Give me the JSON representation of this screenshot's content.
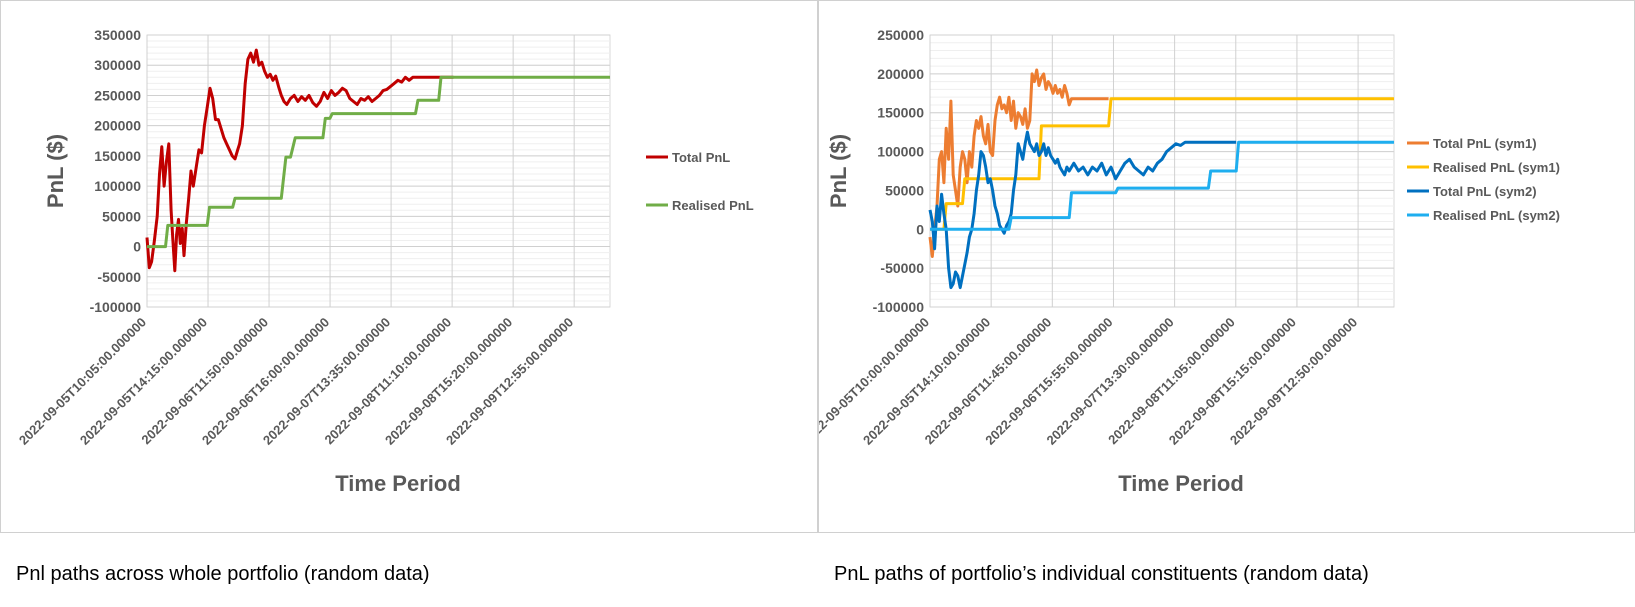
{
  "captions": {
    "left": "Pnl paths across whole portfolio (random data)",
    "right": "PnL paths of portfolio’s individual constituents (random data)"
  },
  "chart_data": [
    {
      "type": "line",
      "xlabel": "Time Period",
      "ylabel": "PnL ($)",
      "ylim": [
        -100000,
        350000
      ],
      "yticks": [
        -100000,
        -50000,
        0,
        50000,
        100000,
        150000,
        200000,
        250000,
        300000,
        350000
      ],
      "xlim": [
        0,
        1
      ],
      "xtick_labels": [
        "2022-09-05T10:05:00.000000",
        "2022-09-05T14:15:00.000000",
        "2022-09-06T11:50:00.000000",
        "2022-09-06T16:00:00.000000",
        "2022-09-07T13:35:00.000000",
        "2022-09-08T11:10:00.000000",
        "2022-09-08T15:20:00.000000",
        "2022-09-09T12:55:00.000000"
      ],
      "grid": true,
      "legend_position": "right",
      "series": [
        {
          "name": "Total PnL",
          "color": "#C00000",
          "x": [
            0,
            0.005,
            0.01,
            0.016,
            0.022,
            0.027,
            0.032,
            0.037,
            0.042,
            0.047,
            0.052,
            0.056,
            0.06,
            0.064,
            0.068,
            0.072,
            0.076,
            0.08,
            0.085,
            0.09,
            0.095,
            0.1,
            0.106,
            0.112,
            0.118,
            0.124,
            0.13,
            0.136,
            0.142,
            0.148,
            0.154,
            0.16,
            0.166,
            0.172,
            0.178,
            0.184,
            0.19,
            0.196,
            0.2,
            0.206,
            0.212,
            0.218,
            0.224,
            0.23,
            0.236,
            0.242,
            0.248,
            0.254,
            0.26,
            0.266,
            0.272,
            0.278,
            0.284,
            0.29,
            0.296,
            0.302,
            0.31,
            0.318,
            0.326,
            0.334,
            0.342,
            0.35,
            0.358,
            0.366,
            0.374,
            0.382,
            0.39,
            0.398,
            0.406,
            0.414,
            0.422,
            0.43,
            0.438,
            0.446,
            0.454,
            0.462,
            0.47,
            0.478,
            0.486,
            0.494,
            0.502,
            0.51,
            0.518,
            0.526,
            0.534,
            0.542,
            0.55,
            0.558,
            0.566,
            0.574,
            0.582,
            0.59,
            0.598,
            0.606,
            0.614,
            0.622,
            0.63,
            0.638,
            0.646,
            0.654,
            0.662
          ],
          "y": [
            15000,
            -35000,
            -25000,
            10000,
            50000,
            120000,
            165000,
            100000,
            140000,
            170000,
            60000,
            10000,
            -40000,
            20000,
            45000,
            5000,
            30000,
            -15000,
            40000,
            80000,
            125000,
            100000,
            130000,
            160000,
            155000,
            200000,
            230000,
            262000,
            245000,
            210000,
            210000,
            195000,
            180000,
            170000,
            160000,
            150000,
            145000,
            160000,
            170000,
            200000,
            270000,
            310000,
            320000,
            305000,
            325000,
            300000,
            305000,
            290000,
            280000,
            285000,
            275000,
            282000,
            265000,
            250000,
            240000,
            235000,
            245000,
            250000,
            240000,
            248000,
            242000,
            250000,
            238000,
            232000,
            240000,
            255000,
            245000,
            258000,
            250000,
            255000,
            262000,
            258000,
            245000,
            240000,
            235000,
            245000,
            242000,
            248000,
            240000,
            245000,
            250000,
            258000,
            260000,
            265000,
            270000,
            275000,
            272000,
            280000,
            275000,
            280000,
            280000,
            280000,
            280000,
            280000,
            280000,
            280000,
            280000,
            280000,
            280000,
            280000,
            280000
          ]
        },
        {
          "name": "Realised PnL",
          "color": "#70AD47",
          "x": [
            0,
            0.04,
            0.045,
            0.085,
            0.09,
            0.13,
            0.135,
            0.14,
            0.185,
            0.19,
            0.215,
            0.22,
            0.235,
            0.24,
            0.29,
            0.3,
            0.31,
            0.32,
            0.38,
            0.385,
            0.395,
            0.4,
            0.58,
            0.585,
            0.63,
            0.635,
            1
          ],
          "y": [
            0,
            0,
            35000,
            35000,
            35000,
            35000,
            65000,
            65000,
            65000,
            80000,
            80000,
            80000,
            80000,
            80000,
            80000,
            148000,
            148000,
            180000,
            180000,
            212000,
            212000,
            220000,
            220000,
            242000,
            242000,
            280000,
            280000
          ]
        }
      ]
    },
    {
      "type": "line",
      "xlabel": "Time Period",
      "ylabel": "PnL ($)",
      "ylim": [
        -100000,
        250000
      ],
      "yticks": [
        -100000,
        -50000,
        0,
        50000,
        100000,
        150000,
        200000,
        250000
      ],
      "xlim": [
        0,
        1
      ],
      "xtick_labels": [
        "2022-09-05T10:00:00.000000",
        "2022-09-05T14:10:00.000000",
        "2022-09-06T11:45:00.000000",
        "2022-09-06T15:55:00.000000",
        "2022-09-07T13:30:00.000000",
        "2022-09-08T11:05:00.000000",
        "2022-09-08T15:15:00.000000",
        "2022-09-09T12:50:00.000000"
      ],
      "grid": true,
      "legend_position": "right",
      "series": [
        {
          "name": "Total PnL (sym1)",
          "color": "#ED7D31",
          "x": [
            0,
            0.005,
            0.01,
            0.015,
            0.02,
            0.025,
            0.03,
            0.035,
            0.04,
            0.045,
            0.05,
            0.055,
            0.06,
            0.065,
            0.07,
            0.075,
            0.08,
            0.085,
            0.09,
            0.095,
            0.1,
            0.105,
            0.11,
            0.115,
            0.12,
            0.125,
            0.13,
            0.135,
            0.14,
            0.145,
            0.15,
            0.155,
            0.16,
            0.165,
            0.17,
            0.175,
            0.18,
            0.185,
            0.19,
            0.195,
            0.2,
            0.205,
            0.21,
            0.215,
            0.22,
            0.225,
            0.23,
            0.235,
            0.24,
            0.245,
            0.25,
            0.255,
            0.26,
            0.265,
            0.27,
            0.275,
            0.28,
            0.285,
            0.29,
            0.295,
            0.3,
            0.305,
            0.31,
            0.315,
            0.32,
            0.325,
            0.33,
            0.335,
            0.34,
            0.345,
            0.35,
            0.355,
            0.36,
            0.365,
            0.37,
            0.375,
            0.38,
            0.385
          ],
          "y": [
            -10000,
            -35000,
            0,
            30000,
            90000,
            100000,
            60000,
            130000,
            90000,
            165000,
            70000,
            50000,
            30000,
            80000,
            100000,
            90000,
            60000,
            100000,
            80000,
            120000,
            140000,
            130000,
            145000,
            120000,
            110000,
            135000,
            100000,
            95000,
            140000,
            160000,
            170000,
            155000,
            160000,
            150000,
            170000,
            140000,
            165000,
            130000,
            150000,
            145000,
            135000,
            155000,
            130000,
            140000,
            200000,
            190000,
            205000,
            185000,
            195000,
            200000,
            180000,
            190000,
            185000,
            175000,
            185000,
            175000,
            180000,
            170000,
            185000,
            175000,
            160000,
            168000,
            168000,
            168000,
            168000,
            168000,
            168000,
            168000,
            168000,
            168000,
            168000,
            168000,
            168000,
            168000,
            168000,
            168000,
            168000,
            168000
          ]
        },
        {
          "name": "Realised PnL (sym1)",
          "color": "#FFC000",
          "x": [
            0,
            0.03,
            0.035,
            0.07,
            0.075,
            0.235,
            0.24,
            0.385,
            0.39,
            1
          ],
          "y": [
            0,
            0,
            33000,
            33000,
            65000,
            65000,
            133000,
            133000,
            168000,
            168000
          ]
        },
        {
          "name": "Total PnL (sym2)",
          "color": "#0070C0",
          "x": [
            0,
            0.005,
            0.01,
            0.015,
            0.02,
            0.025,
            0.03,
            0.035,
            0.04,
            0.045,
            0.05,
            0.055,
            0.06,
            0.065,
            0.07,
            0.075,
            0.08,
            0.085,
            0.09,
            0.095,
            0.1,
            0.105,
            0.11,
            0.115,
            0.12,
            0.125,
            0.13,
            0.135,
            0.14,
            0.145,
            0.15,
            0.155,
            0.16,
            0.165,
            0.17,
            0.175,
            0.18,
            0.185,
            0.19,
            0.195,
            0.2,
            0.205,
            0.21,
            0.215,
            0.22,
            0.225,
            0.23,
            0.235,
            0.24,
            0.245,
            0.25,
            0.255,
            0.26,
            0.265,
            0.27,
            0.275,
            0.28,
            0.285,
            0.29,
            0.295,
            0.3,
            0.31,
            0.32,
            0.33,
            0.34,
            0.35,
            0.36,
            0.37,
            0.38,
            0.39,
            0.4,
            0.41,
            0.42,
            0.43,
            0.44,
            0.45,
            0.46,
            0.47,
            0.48,
            0.49,
            0.5,
            0.51,
            0.52,
            0.53,
            0.54,
            0.55,
            0.56,
            0.57,
            0.58,
            0.59,
            0.6,
            0.61,
            0.62,
            0.63,
            0.64,
            0.65,
            0.66
          ],
          "y": [
            25000,
            10000,
            -25000,
            30000,
            10000,
            45000,
            20000,
            0,
            -50000,
            -75000,
            -70000,
            -55000,
            -60000,
            -75000,
            -60000,
            -45000,
            -30000,
            -10000,
            0,
            20000,
            50000,
            70000,
            100000,
            95000,
            80000,
            60000,
            65000,
            50000,
            30000,
            20000,
            5000,
            0,
            -5000,
            5000,
            10000,
            20000,
            50000,
            70000,
            110000,
            100000,
            90000,
            110000,
            125000,
            110000,
            105000,
            100000,
            110000,
            95000,
            100000,
            110000,
            95000,
            105000,
            95000,
            90000,
            85000,
            90000,
            80000,
            75000,
            70000,
            80000,
            75000,
            85000,
            75000,
            80000,
            70000,
            80000,
            75000,
            85000,
            70000,
            80000,
            65000,
            75000,
            85000,
            90000,
            80000,
            75000,
            70000,
            80000,
            75000,
            85000,
            90000,
            100000,
            105000,
            110000,
            108000,
            112000,
            112000,
            112000,
            112000,
            112000,
            112000,
            112000,
            112000,
            112000,
            112000,
            112000,
            112000
          ]
        },
        {
          "name": "Realised PnL (sym2)",
          "color": "#1EAEEF",
          "x": [
            0,
            0.17,
            0.175,
            0.3,
            0.305,
            0.4,
            0.405,
            0.6,
            0.605,
            0.66,
            0.665,
            1
          ],
          "y": [
            0,
            0,
            15000,
            15000,
            47000,
            47000,
            53000,
            53000,
            75000,
            75000,
            112000,
            112000
          ]
        }
      ]
    }
  ]
}
